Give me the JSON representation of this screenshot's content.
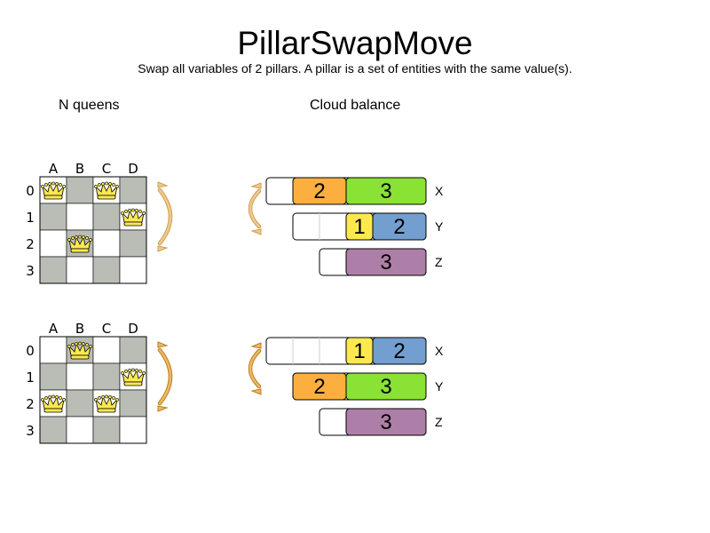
{
  "title": "PillarSwapMove",
  "subtitle": "Swap all variables of 2 pillars. A pillar is a set of entities with the same value(s).",
  "sections": {
    "n_queens": "N queens",
    "cloud_balance": "Cloud balance"
  },
  "colors": {
    "dark_cell": "#babdb6",
    "light_cell": "#ffffff",
    "arrow": "#e9b96e",
    "queen": "#fce94f"
  },
  "boards": [
    {
      "columns": [
        "A",
        "B",
        "C",
        "D"
      ],
      "rows": [
        "0",
        "1",
        "2",
        "3"
      ],
      "queens": [
        {
          "col": "A",
          "row": "0"
        },
        {
          "col": "C",
          "row": "0"
        },
        {
          "col": "D",
          "row": "1"
        },
        {
          "col": "B",
          "row": "2"
        }
      ]
    },
    {
      "columns": [
        "A",
        "B",
        "C",
        "D"
      ],
      "rows": [
        "0",
        "1",
        "2",
        "3"
      ],
      "queens": [
        {
          "col": "B",
          "row": "0"
        },
        {
          "col": "D",
          "row": "1"
        },
        {
          "col": "A",
          "row": "2"
        },
        {
          "col": "C",
          "row": "2"
        }
      ]
    }
  ],
  "clouds": [
    {
      "computers": [
        {
          "name": "X",
          "capacity": 6,
          "processes": [
            {
              "size": 2,
              "label": "2",
              "color": "#fcaf3e"
            },
            {
              "size": 3,
              "label": "3",
              "color": "#8ae234"
            }
          ]
        },
        {
          "name": "Y",
          "capacity": 5,
          "processes": [
            {
              "size": 1,
              "label": "1",
              "color": "#fce94f"
            },
            {
              "size": 2,
              "label": "2",
              "color": "#729fcf"
            }
          ]
        },
        {
          "name": "Z",
          "capacity": 4,
          "processes": [
            {
              "size": 3,
              "label": "3",
              "color": "#ad7fa8"
            }
          ]
        }
      ]
    },
    {
      "computers": [
        {
          "name": "X",
          "capacity": 6,
          "processes": [
            {
              "size": 1,
              "label": "1",
              "color": "#fce94f"
            },
            {
              "size": 2,
              "label": "2",
              "color": "#729fcf"
            }
          ]
        },
        {
          "name": "Y",
          "capacity": 5,
          "processes": [
            {
              "size": 2,
              "label": "2",
              "color": "#fcaf3e"
            },
            {
              "size": 3,
              "label": "3",
              "color": "#8ae234"
            }
          ]
        },
        {
          "name": "Z",
          "capacity": 4,
          "processes": [
            {
              "size": 3,
              "label": "3",
              "color": "#ad7fa8"
            }
          ]
        }
      ]
    }
  ]
}
